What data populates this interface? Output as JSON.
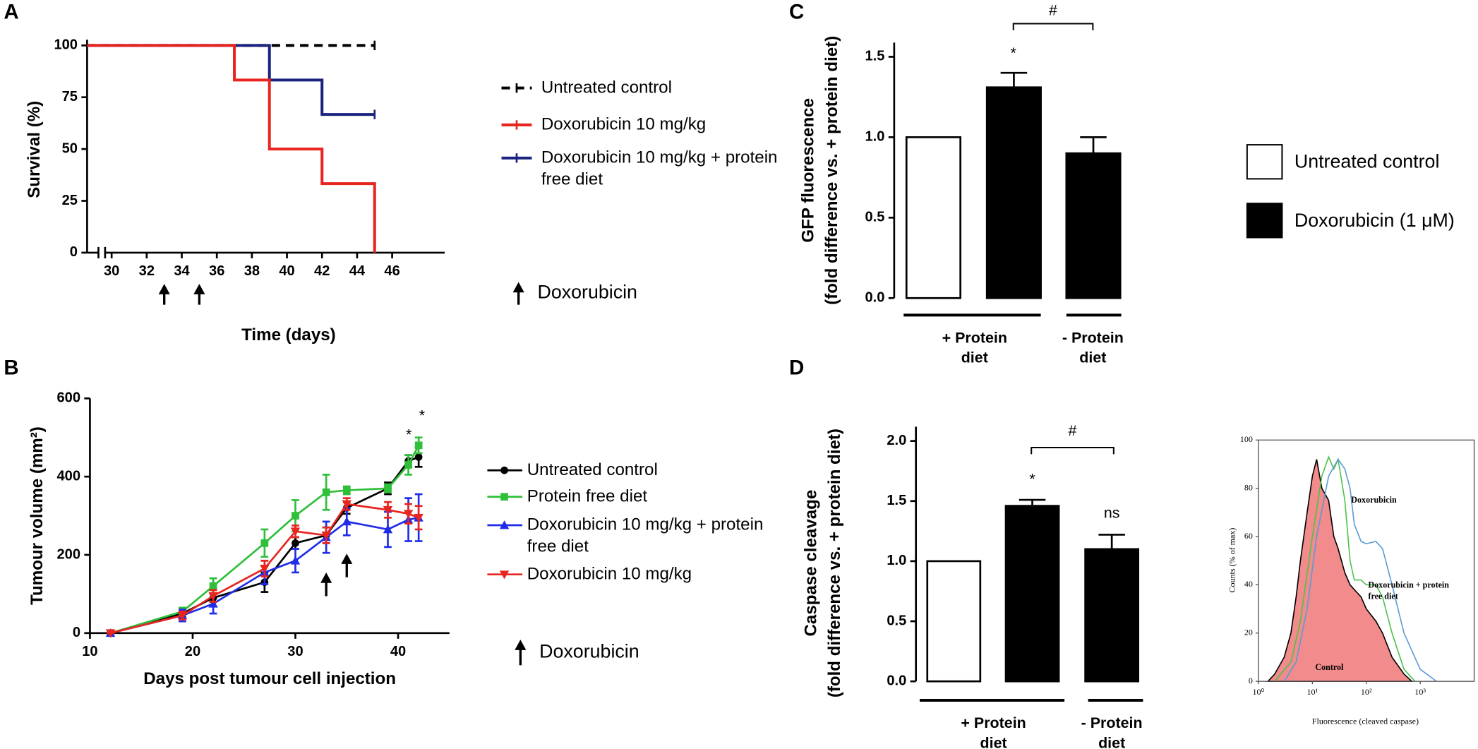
{
  "chart_data": [
    {
      "panel": "A",
      "type": "step",
      "xlabel": "Time (days)",
      "ylabel": "Survival (%)",
      "xlim": [
        28.6,
        49
      ],
      "ylim": [
        0,
        100
      ],
      "xticks": [
        30,
        32,
        34,
        36,
        38,
        40,
        42,
        44,
        46
      ],
      "yticks": [
        0,
        25,
        50,
        75,
        100
      ],
      "treatment_days": [
        33,
        35
      ],
      "arrow_label": "Doxorubicin",
      "series": [
        {
          "name": "Untreated control",
          "color": "#000000",
          "style": "dashed",
          "x": [
            28.6,
            45
          ],
          "values": [
            100,
            100
          ]
        },
        {
          "name": "Doxorubicin 10 mg/kg",
          "color": "#e8251f",
          "style": "solid",
          "x": [
            28.6,
            37,
            39,
            42,
            45
          ],
          "values": [
            100,
            83.3,
            50,
            33.3,
            0
          ]
        },
        {
          "name": "Doxorubicin 10 mg/kg + protein free diet",
          "color": "#1a237e",
          "style": "solid",
          "x": [
            28.6,
            39,
            42,
            45
          ],
          "values": [
            100,
            83.3,
            66.7,
            66.7
          ]
        }
      ]
    },
    {
      "panel": "B",
      "type": "line",
      "xlabel": "Days post tumour cell injection",
      "ylabel": "Tumour volume (mm²)",
      "xlim": [
        10,
        45
      ],
      "ylim": [
        0,
        600
      ],
      "xticks": [
        10,
        20,
        30,
        40
      ],
      "yticks": [
        0,
        200,
        400,
        600
      ],
      "x": [
        12,
        19,
        22,
        27,
        30,
        33,
        35,
        39,
        41,
        42
      ],
      "treatment_days": [
        33,
        35
      ],
      "arrow_label": "Doxorubicin",
      "annotations": [
        "*",
        "*"
      ],
      "series": [
        {
          "name": "Untreated control",
          "color": "#000000",
          "marker": "circle",
          "values": [
            0,
            50,
            90,
            130,
            230,
            250,
            320,
            370,
            440,
            450
          ],
          "errors": [
            0,
            8,
            10,
            25,
            15,
            20,
            15,
            15,
            15,
            25
          ]
        },
        {
          "name": "Protein free diet",
          "color": "#2fbf3a",
          "marker": "square",
          "values": [
            0,
            55,
            120,
            230,
            300,
            360,
            365,
            370,
            430,
            480
          ],
          "errors": [
            0,
            10,
            20,
            35,
            40,
            45,
            10,
            10,
            25,
            20
          ]
        },
        {
          "name": "Doxorubicin 10 mg/kg + protein free diet",
          "color": "#1f2de8",
          "marker": "triangle-up",
          "values": [
            0,
            45,
            75,
            155,
            185,
            245,
            285,
            265,
            290,
            295
          ],
          "errors": [
            0,
            15,
            25,
            30,
            30,
            40,
            35,
            45,
            55,
            60
          ]
        },
        {
          "name": "Doxorubicin 10 mg/kg",
          "color": "#e8251f",
          "marker": "triangle-down",
          "values": [
            0,
            45,
            95,
            165,
            260,
            250,
            330,
            315,
            305,
            295
          ],
          "errors": [
            0,
            10,
            15,
            20,
            15,
            20,
            15,
            20,
            25,
            30
          ]
        }
      ]
    },
    {
      "panel": "C",
      "type": "bar",
      "ylabel": [
        "GFP fluorescence",
        "(fold difference vs. + protein diet)"
      ],
      "ylim": [
        0,
        1.5
      ],
      "yticks": [
        {
          "value": 0,
          "label": "0.0"
        },
        0.5,
        {
          "value": 1,
          "label": "1.0"
        },
        1.5
      ],
      "groups": [
        [
          "+ Protein",
          "diet"
        ],
        [
          "- Protein",
          "diet"
        ]
      ],
      "annotations": [
        "*"
      ],
      "bracket_label": "#",
      "series": [
        {
          "name": "Untreated control",
          "color": "#ffffff",
          "values": [
            1.0,
            null
          ],
          "errors": [
            null,
            null
          ]
        },
        {
          "name": "Doxorubicin (1 μM)",
          "color": "#000000",
          "values": [
            1.31,
            0.9
          ],
          "errors": [
            0.09,
            0.1
          ]
        }
      ]
    },
    {
      "panel": "D",
      "type": "bar",
      "ylabel": [
        "Caspase cleavage",
        "(fold difference vs. + protein diet)"
      ],
      "ylim": [
        0,
        2.0
      ],
      "yticks": [
        {
          "value": 0,
          "label": "0.0"
        },
        0.5,
        {
          "value": 1,
          "label": "1.0"
        },
        1.5,
        {
          "value": 2,
          "label": "2.0"
        }
      ],
      "groups": [
        [
          "+ Protein",
          "diet"
        ],
        [
          "- Protein",
          "diet"
        ]
      ],
      "annotations": [
        "*",
        "ns"
      ],
      "bracket_label": "#",
      "series": [
        {
          "color": "#ffffff",
          "values": [
            1.0,
            null
          ],
          "errors": [
            null,
            null
          ]
        },
        {
          "color": "#000000",
          "values": [
            1.46,
            1.1
          ],
          "errors": [
            0.05,
            0.12
          ]
        }
      ]
    },
    {
      "type": "histogram-overlay",
      "xscale": "log",
      "xlabel": "Fluorescence (cleaved caspase)",
      "ylabel": "Counts (% of max)",
      "xlim": [
        1,
        10000
      ],
      "ylim": [
        0,
        100
      ],
      "xticks": [
        {
          "value": 1,
          "label": "10⁰"
        },
        {
          "value": 10,
          "label": "10¹"
        },
        {
          "value": 100,
          "label": "10²"
        },
        {
          "value": 1000,
          "label": "10³"
        }
      ],
      "yticks": [
        0,
        20,
        40,
        60,
        80,
        100
      ],
      "series": [
        {
          "name": "Control",
          "color": "#000000",
          "fill": "#f28b8b",
          "x": [
            1.5,
            2,
            3,
            4,
            5,
            6,
            8,
            10,
            12,
            15,
            20,
            25,
            30,
            40,
            50,
            60,
            80,
            100,
            150,
            200,
            300,
            500,
            700
          ],
          "values": [
            0,
            3,
            10,
            20,
            35,
            50,
            70,
            85,
            92,
            80,
            75,
            60,
            55,
            45,
            40,
            38,
            35,
            30,
            25,
            20,
            10,
            3,
            0
          ]
        },
        {
          "name": "Doxorubicin + protein free diet",
          "color": "#4cc24c",
          "x": [
            2,
            4,
            6,
            10,
            15,
            20,
            25,
            30,
            40,
            50,
            60,
            80,
            100,
            150,
            200,
            300,
            500,
            800
          ],
          "values": [
            0,
            8,
            25,
            60,
            85,
            93,
            88,
            92,
            75,
            50,
            42,
            42,
            40,
            40,
            35,
            20,
            5,
            0
          ]
        },
        {
          "name": "Doxorubicin",
          "color": "#5b9bd5",
          "x": [
            3,
            5,
            8,
            12,
            20,
            30,
            40,
            50,
            60,
            80,
            100,
            150,
            200,
            300,
            500,
            1000,
            2000
          ],
          "values": [
            0,
            8,
            30,
            60,
            85,
            92,
            88,
            80,
            65,
            58,
            57,
            58,
            55,
            40,
            20,
            5,
            0
          ]
        }
      ]
    }
  ]
}
